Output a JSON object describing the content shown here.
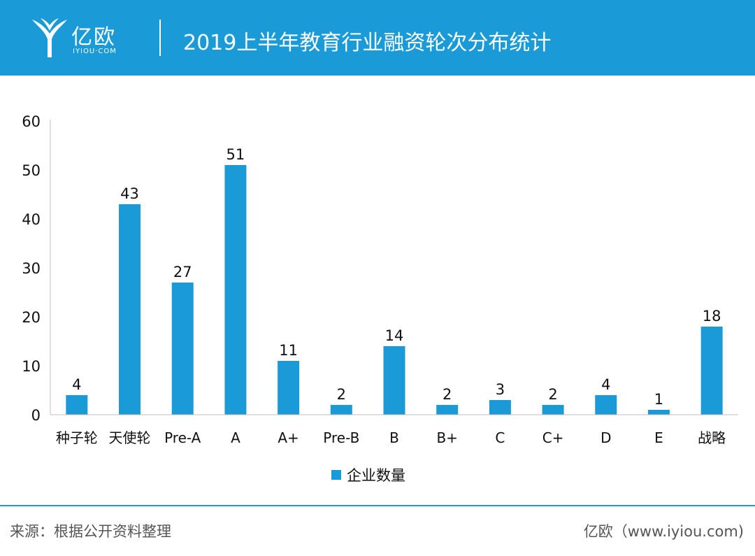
{
  "header": {
    "logo_cn": "亿欧",
    "logo_en": "IYIOU·COM",
    "title": "2019上半年教育行业融资轮次分布统计"
  },
  "colors": {
    "accent": "#1a9ad6"
  },
  "chart_data": {
    "type": "bar",
    "title": "2019上半年教育行业融资轮次分布统计",
    "categories": [
      "种子轮",
      "天使轮",
      "Pre-A",
      "A",
      "A+",
      "Pre-B",
      "B",
      "B+",
      "C",
      "C+",
      "D",
      "E",
      "战略"
    ],
    "series": [
      {
        "name": "企业数量",
        "values": [
          4,
          43,
          27,
          51,
          11,
          2,
          14,
          2,
          3,
          2,
          4,
          1,
          18
        ]
      }
    ],
    "yticks": [
      0,
      10,
      20,
      30,
      40,
      50,
      60
    ],
    "ylim": [
      0,
      60
    ],
    "grid": false,
    "legend": "bottom-center"
  },
  "footer": {
    "source": "来源：根据公开资料整理",
    "brand": "亿欧（www.iyiou.com)"
  }
}
